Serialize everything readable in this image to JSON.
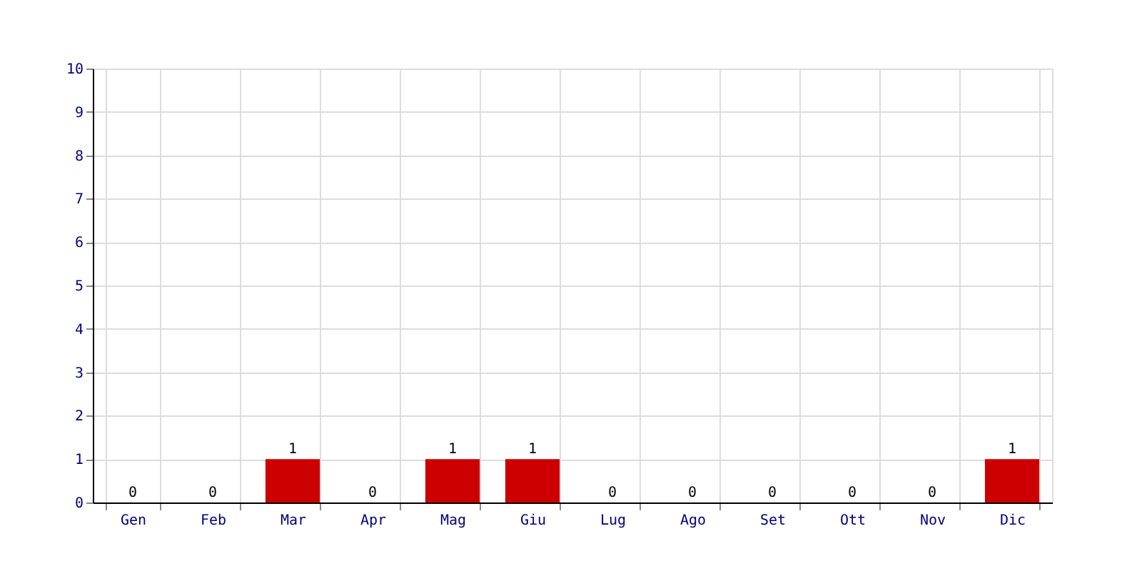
{
  "chart_data": {
    "type": "bar",
    "categories": [
      "Gen",
      "Feb",
      "Mar",
      "Apr",
      "Mag",
      "Giu",
      "Lug",
      "Ago",
      "Set",
      "Ott",
      "Nov",
      "Dic"
    ],
    "values": [
      0,
      0,
      1,
      0,
      1,
      1,
      0,
      0,
      0,
      0,
      0,
      1
    ],
    "color": "#cc0000",
    "ylim": [
      0,
      10
    ],
    "yticks": [
      0,
      1,
      2,
      3,
      4,
      5,
      6,
      7,
      8,
      9,
      10
    ],
    "grid": true,
    "data_labels": true
  }
}
